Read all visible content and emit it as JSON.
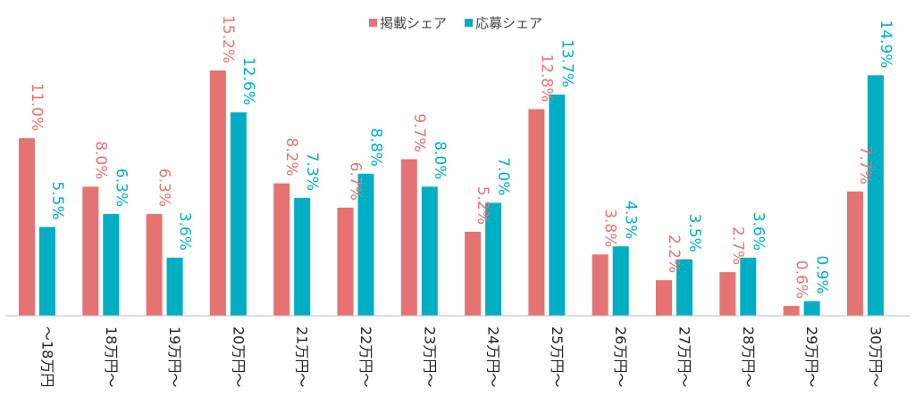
{
  "chart_data": {
    "type": "bar",
    "title": "",
    "xlabel": "",
    "ylabel": "",
    "ylim": [
      0,
      15.2
    ],
    "grid": false,
    "legend_position": "top-center",
    "categories": [
      "～18万円",
      "18万円～",
      "19万円～",
      "20万円～",
      "21万円～",
      "22万円～",
      "23万円～",
      "24万円～",
      "25万円～",
      "26万円～",
      "27万円～",
      "28万円～",
      "29万円～",
      "30万円～"
    ],
    "series": [
      {
        "name": "掲載シェア",
        "color": "#e57373",
        "values": [
          11.0,
          8.0,
          6.3,
          15.2,
          8.2,
          6.7,
          9.7,
          5.2,
          12.8,
          3.8,
          2.2,
          2.7,
          0.6,
          7.7
        ],
        "labels": [
          "11.0%",
          "8.0%",
          "6.3%",
          "15.2%",
          "8.2%",
          "6.7%",
          "9.7%",
          "5.2%",
          "12.8%",
          "3.8%",
          "2.2%",
          "2.7%",
          "0.6%",
          "7.7%"
        ]
      },
      {
        "name": "応募シェア",
        "color": "#00aec4",
        "values": [
          5.5,
          6.3,
          3.6,
          12.6,
          7.3,
          8.8,
          8.0,
          7.0,
          13.7,
          4.3,
          3.5,
          3.6,
          0.9,
          14.9
        ],
        "labels": [
          "5.5%",
          "6.3%",
          "3.6%",
          "12.6%",
          "7.3%",
          "8.8%",
          "8.0%",
          "7.0%",
          "13.7%",
          "4.3%",
          "3.5%",
          "3.6%",
          "0.9%",
          "14.9%"
        ]
      }
    ]
  }
}
